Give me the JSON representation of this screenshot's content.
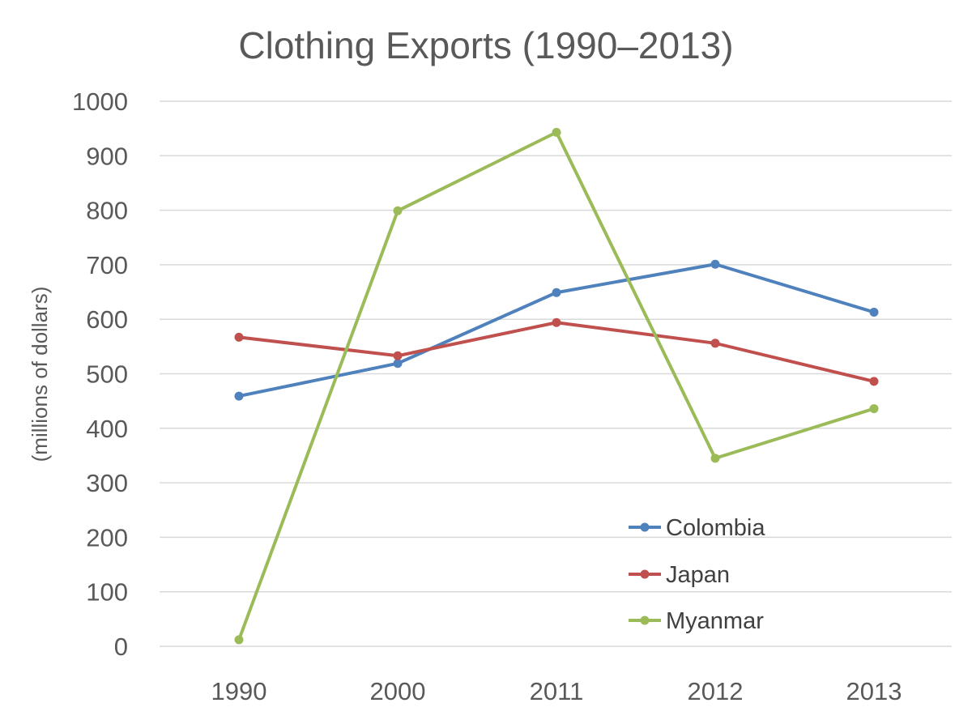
{
  "chart_data": {
    "type": "line",
    "title": "Clothing Exports (1990–2013)",
    "ylabel": "(millions of dollars)",
    "xlabel": "",
    "categories": [
      "1990",
      "2000",
      "2011",
      "2012",
      "2013"
    ],
    "ylim": [
      0,
      1000
    ],
    "yticks": [
      "0",
      "100",
      "200",
      "300",
      "400",
      "500",
      "600",
      "700",
      "800",
      "900",
      "1000"
    ],
    "grid": true,
    "legend_position": "bottom-right (inside plot)",
    "series": [
      {
        "name": "Colombia",
        "color": "#4f81bd",
        "values": [
          459,
          519,
          649,
          701,
          613
        ]
      },
      {
        "name": "Japan",
        "color": "#c0504d",
        "values": [
          567,
          533,
          594,
          556,
          486
        ]
      },
      {
        "name": "Myanmar",
        "color": "#9bbb59",
        "values": [
          12,
          799,
          943,
          345,
          436
        ]
      }
    ]
  }
}
